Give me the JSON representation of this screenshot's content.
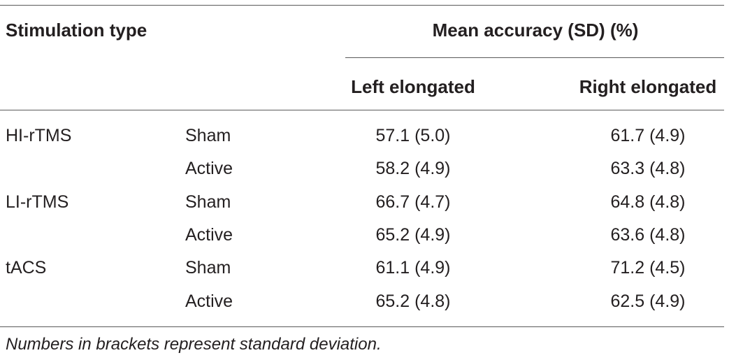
{
  "table": {
    "headers": {
      "stimulation_type": "Stimulation type",
      "mean_accuracy": "Mean accuracy (SD) (%)",
      "left_elongated": "Left elongated",
      "right_elongated": "Right elongated"
    },
    "rows": [
      {
        "type": "HI-rTMS",
        "condition": "Sham",
        "left": "57.1 (5.0)",
        "right": "61.7 (4.9)"
      },
      {
        "type": "",
        "condition": "Active",
        "left": "58.2 (4.9)",
        "right": "63.3 (4.8)"
      },
      {
        "type": "LI-rTMS",
        "condition": "Sham",
        "left": "66.7 (4.7)",
        "right": "64.8 (4.8)"
      },
      {
        "type": "",
        "condition": "Active",
        "left": "65.2 (4.9)",
        "right": "63.6 (4.8)"
      },
      {
        "type": "tACS",
        "condition": "Sham",
        "left": "61.1 (4.9)",
        "right": "71.2 (4.5)"
      },
      {
        "type": "",
        "condition": "Active",
        "left": "65.2 (4.8)",
        "right": "62.5 (4.9)"
      }
    ],
    "footnote": "Numbers in brackets represent standard deviation."
  }
}
